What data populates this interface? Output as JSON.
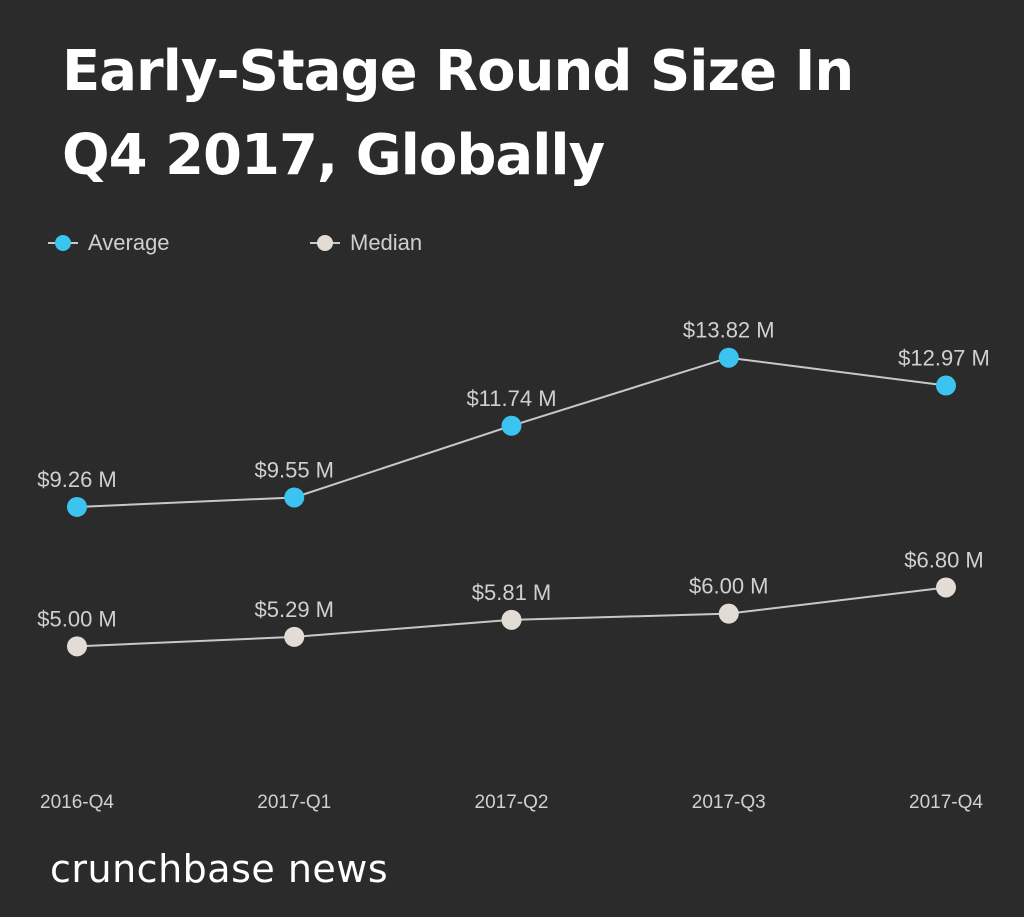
{
  "title_line1": "Early-Stage Round Size In",
  "title_line2": "Q4 2017, Globally",
  "brand": "crunchbase news",
  "colors": {
    "background": "#2b2b2b",
    "average": "#3bc4f0",
    "median": "#e3dcd4",
    "line": "#c8c8c8",
    "label": "#d0d0d0"
  },
  "chart_data": {
    "type": "line",
    "title": "Early-Stage Round Size In Q4 2017, Globally",
    "categories": [
      "2016-Q4",
      "2017-Q1",
      "2017-Q2",
      "2017-Q3",
      "2017-Q4"
    ],
    "series": [
      {
        "name": "Average",
        "values": [
          9.26,
          9.55,
          11.74,
          13.82,
          12.97
        ],
        "labels": [
          "$9.26 M",
          "$9.55 M",
          "$11.74 M",
          "$13.82 M",
          "$12.97 M"
        ]
      },
      {
        "name": "Median",
        "values": [
          5.0,
          5.29,
          5.81,
          6.0,
          6.8
        ],
        "labels": [
          "$5.00 M",
          "$5.29 M",
          "$5.81 M",
          "$6.00 M",
          "$6.80 M"
        ]
      }
    ],
    "xlabel": "",
    "ylabel": "",
    "ylim": [
      0,
      16.5
    ],
    "grid": false,
    "legend": "top-left"
  }
}
